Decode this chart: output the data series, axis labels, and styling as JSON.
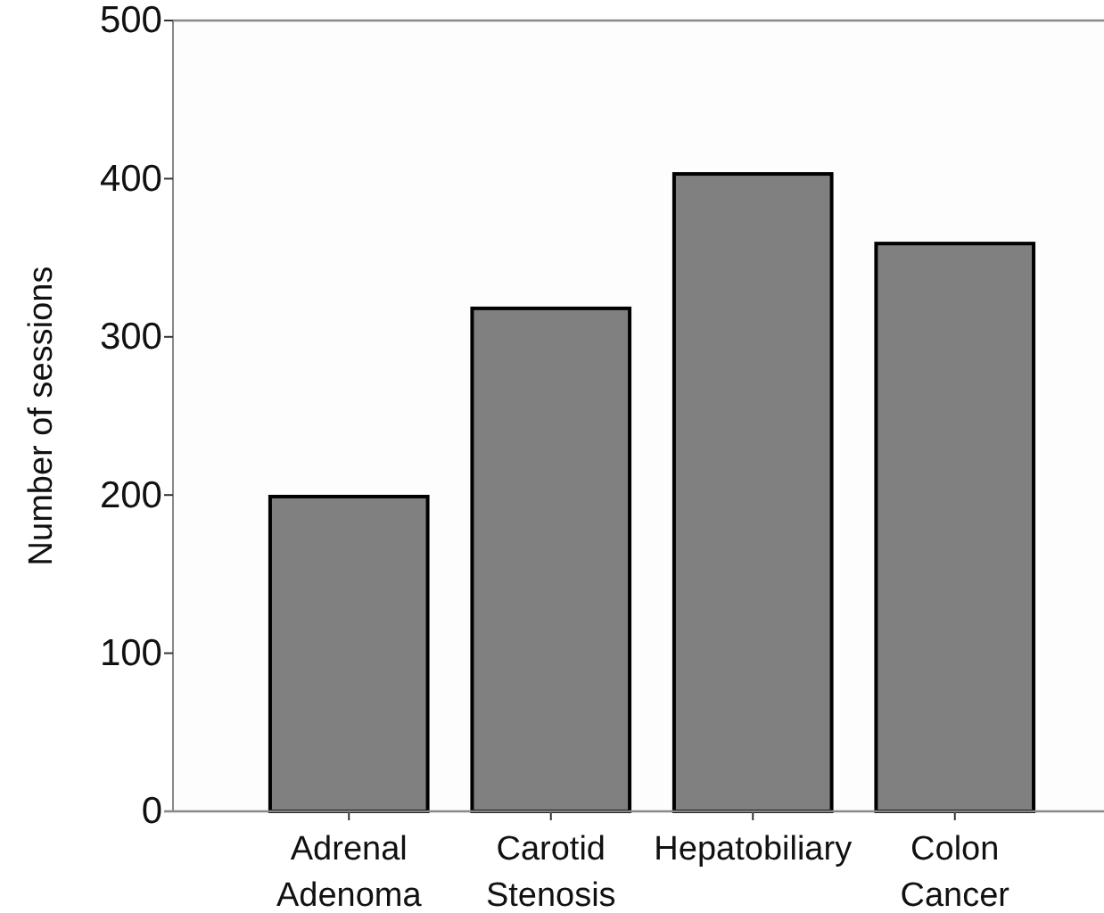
{
  "chart_data": {
    "type": "bar",
    "ylabel": "Number of sessions",
    "categories": [
      "Adrenal Adenoma",
      "Carotid Stenosis",
      "Hepatobiliary",
      "Colon Cancer"
    ],
    "values": [
      199,
      318,
      403,
      359
    ],
    "color": "#808080",
    "ylim": [
      0,
      500
    ],
    "yticks": [
      0,
      100,
      200,
      300,
      400,
      500
    ],
    "grid": false
  }
}
